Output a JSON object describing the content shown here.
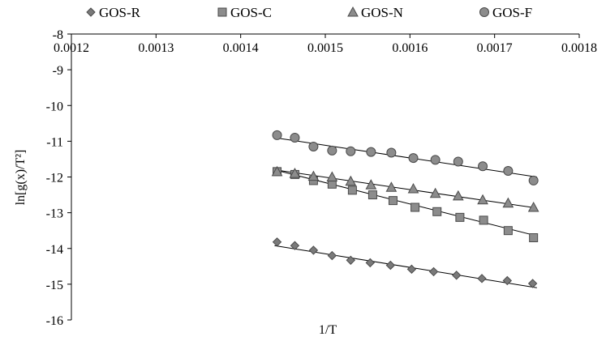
{
  "chart_data": {
    "type": "scatter",
    "title": "",
    "xlabel": "1/T",
    "ylabel": "ln[g(x)/T²]",
    "xlim": [
      0.0012,
      0.0018
    ],
    "ylim": [
      -16,
      -8
    ],
    "x_ticks": [
      "0.0012",
      "0.0013",
      "0.0014",
      "0.0015",
      "0.0016",
      "0.0017",
      "0.0018"
    ],
    "y_ticks": [
      "-8",
      "-9",
      "-10",
      "-11",
      "-12",
      "-13",
      "-14",
      "-15",
      "-16"
    ],
    "grid": false,
    "legend_position": "top",
    "trendlines": true,
    "series": [
      {
        "name": "GOS-R",
        "marker": "diamond",
        "color": "#7a7a7a",
        "x": [
          0.001443,
          0.001464,
          0.001486,
          0.001508,
          0.00153,
          0.001553,
          0.001577,
          0.001602,
          0.001628,
          0.001655,
          0.001685,
          0.001715,
          0.001745
        ],
        "y": [
          -13.82,
          -13.92,
          -14.05,
          -14.2,
          -14.33,
          -14.4,
          -14.47,
          -14.58,
          -14.65,
          -14.75,
          -14.84,
          -14.9,
          -14.98
        ],
        "fit": {
          "x0": 0.00144,
          "y0": -13.92,
          "x1": 0.00175,
          "y1": -15.1
        }
      },
      {
        "name": "GOS-C",
        "marker": "square",
        "color": "#8c8c8c",
        "x": [
          0.001443,
          0.001464,
          0.001486,
          0.001508,
          0.001532,
          0.001556,
          0.00158,
          0.001606,
          0.001632,
          0.001659,
          0.001687,
          0.001716,
          0.001746
        ],
        "y": [
          -11.85,
          -11.93,
          -12.1,
          -12.2,
          -12.37,
          -12.5,
          -12.66,
          -12.85,
          -12.97,
          -13.13,
          -13.21,
          -13.5,
          -13.7
        ],
        "fit": {
          "x0": 0.00144,
          "y0": -11.8,
          "x1": 0.00175,
          "y1": -13.65
        }
      },
      {
        "name": "GOS-N",
        "marker": "triangle",
        "color": "#8c8c8c",
        "x": [
          0.001443,
          0.001464,
          0.001486,
          0.001508,
          0.00153,
          0.001554,
          0.001578,
          0.001604,
          0.00163,
          0.001657,
          0.001686,
          0.001716,
          0.001746
        ],
        "y": [
          -11.85,
          -11.9,
          -11.98,
          -12.0,
          -12.12,
          -12.22,
          -12.29,
          -12.33,
          -12.46,
          -12.53,
          -12.64,
          -12.73,
          -12.85
        ],
        "fit": {
          "x0": 0.00144,
          "y0": -11.8,
          "x1": 0.00175,
          "y1": -12.87
        }
      },
      {
        "name": "GOS-F",
        "marker": "circle",
        "color": "#8c8c8c",
        "x": [
          0.001443,
          0.001464,
          0.001486,
          0.001508,
          0.00153,
          0.001554,
          0.001578,
          0.001604,
          0.00163,
          0.001657,
          0.001686,
          0.001716,
          0.001746
        ],
        "y": [
          -10.83,
          -10.9,
          -11.15,
          -11.26,
          -11.28,
          -11.3,
          -11.32,
          -11.47,
          -11.52,
          -11.57,
          -11.7,
          -11.83,
          -12.1
        ],
        "fit": {
          "x0": 0.00144,
          "y0": -10.9,
          "x1": 0.00175,
          "y1": -12.0
        }
      }
    ]
  }
}
